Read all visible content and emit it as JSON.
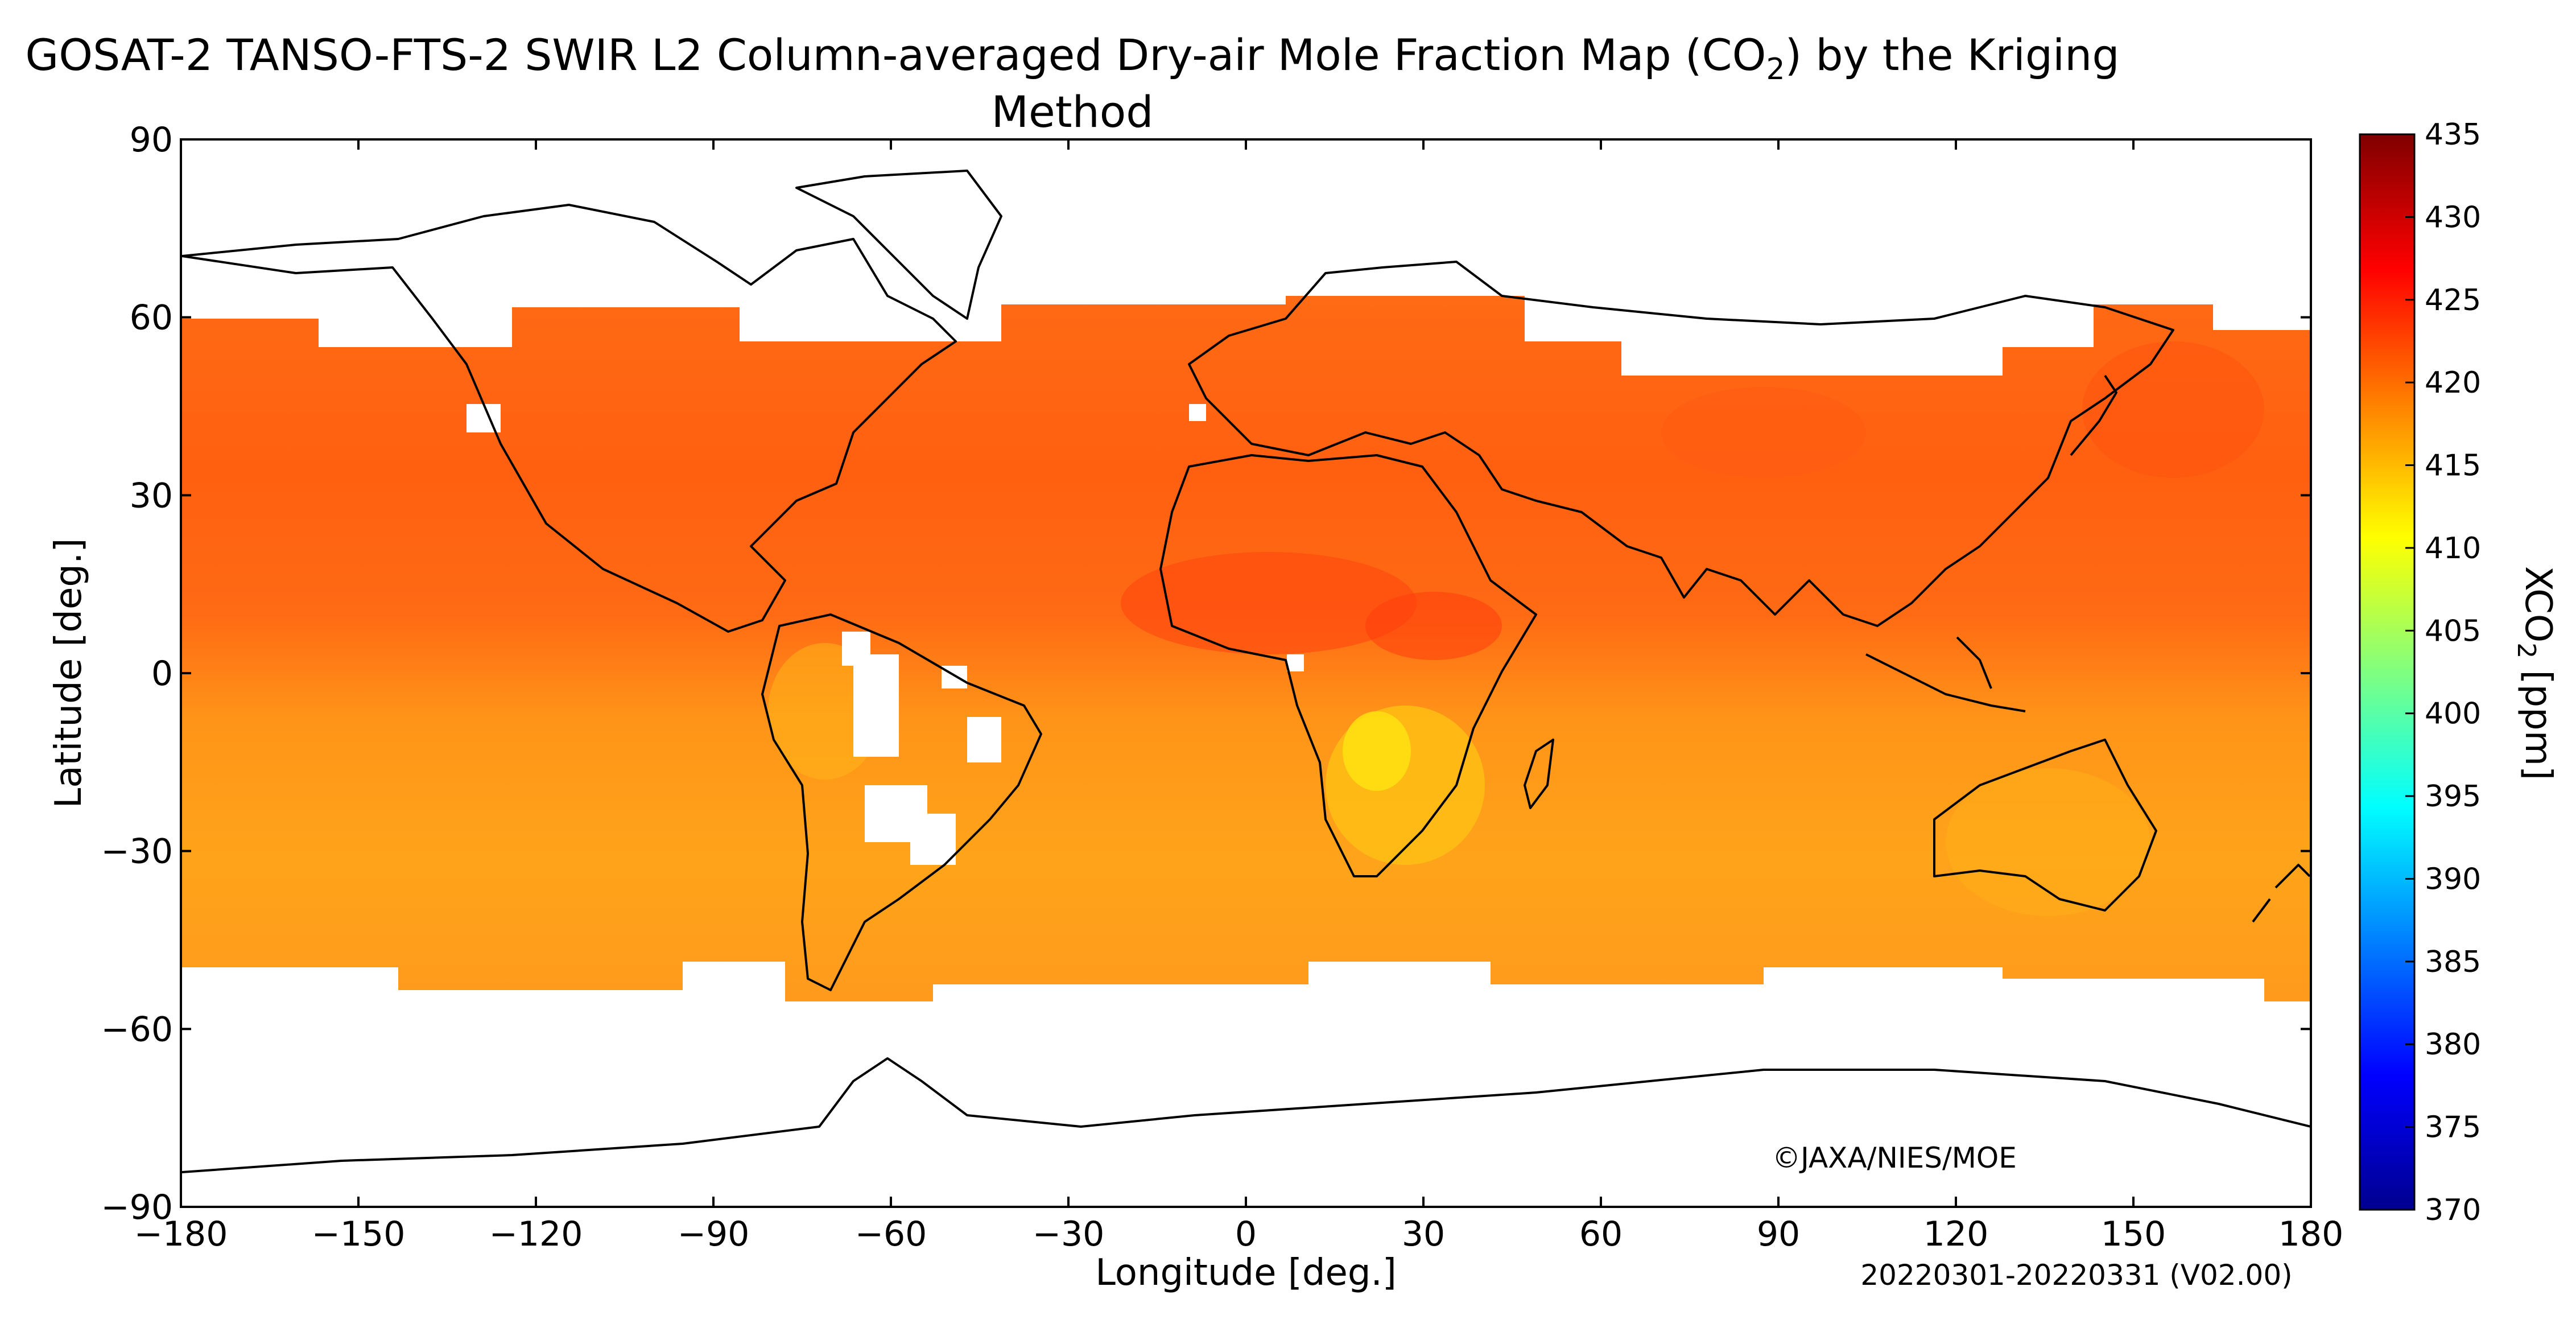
{
  "title_main": "GOSAT-2 TANSO-FTS-2 SWIR L2 Column-averaged Dry-air Mole Fraction Map (CO",
  "title_sub": "2",
  "title_end": ") by the Kriging Method",
  "copyright": "©JAXA/NIES/MOE",
  "period": "20220301-20220331 (V02.00)",
  "x_axis": {
    "label": "Longitude [deg.]",
    "ticks": [
      -180,
      -150,
      -120,
      -90,
      -60,
      -30,
      0,
      30,
      60,
      90,
      120,
      150,
      180
    ],
    "range": [
      -180,
      180
    ]
  },
  "y_axis": {
    "label": "Latitude [deg.]",
    "ticks": [
      90,
      60,
      30,
      0,
      -30,
      -60,
      -90
    ],
    "range": [
      -90,
      90
    ]
  },
  "colorbar": {
    "label_main": "XCO",
    "label_sub": "2",
    "label_end": " [ppm]",
    "ticks": [
      435,
      430,
      425,
      420,
      415,
      410,
      405,
      400,
      395,
      390,
      385,
      380,
      375,
      370
    ],
    "range": [
      370,
      435
    ],
    "colors": [
      "#00008f",
      "#0000ff",
      "#0080ff",
      "#00ffff",
      "#80ff80",
      "#ffff00",
      "#ff8000",
      "#ff0000",
      "#800000"
    ]
  },
  "chart_data": {
    "type": "heatmap",
    "title": "GOSAT-2 TANSO-FTS-2 SWIR L2 Column-averaged Dry-air Mole Fraction Map (CO2) by the Kriging Method",
    "xlabel": "Longitude [deg.]",
    "ylabel": "Latitude [deg.]",
    "xlim": [
      -180,
      180
    ],
    "ylim": [
      -90,
      90
    ],
    "colorbar_label": "XCO2 [ppm]",
    "value_range": [
      370,
      435
    ],
    "data_coverage_lat": [
      -55,
      62
    ],
    "approx_values_ppm": [
      {
        "region": "Northern hemisphere 30N-60N",
        "value": 421
      },
      {
        "region": "Sahara / North Africa",
        "value": 424
      },
      {
        "region": "Tropical Pacific / Atlantic",
        "value": 419
      },
      {
        "region": "Southern Africa",
        "value": 413
      },
      {
        "region": "South America / Southern oceans",
        "value": 416
      },
      {
        "region": "Australia",
        "value": 416
      }
    ]
  }
}
